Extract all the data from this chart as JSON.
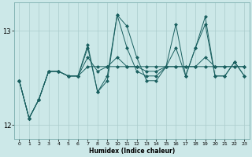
{
  "xlabel": "Humidex (Indice chaleur)",
  "bg_color": "#cce8e8",
  "grid_color": "#aacccc",
  "line_color": "#1a6060",
  "xlim": [
    -0.5,
    23.5
  ],
  "ylim": [
    11.85,
    13.3
  ],
  "yticks": [
    12,
    13
  ],
  "xticks": [
    0,
    1,
    2,
    3,
    4,
    5,
    6,
    7,
    8,
    9,
    10,
    11,
    12,
    13,
    14,
    15,
    16,
    17,
    18,
    19,
    20,
    21,
    22,
    23
  ],
  "lineA": [
    12.47,
    12.07,
    12.27,
    12.57,
    12.57,
    12.52,
    12.52,
    12.62,
    12.62,
    12.62,
    12.62,
    12.62,
    12.62,
    12.62,
    12.62,
    12.62,
    12.62,
    12.62,
    12.62,
    12.62,
    12.62,
    12.62,
    12.62,
    12.62
  ],
  "lineB": [
    12.47,
    12.07,
    12.27,
    12.57,
    12.57,
    12.52,
    12.52,
    12.72,
    12.57,
    12.62,
    12.72,
    12.62,
    12.62,
    12.57,
    12.57,
    12.62,
    12.62,
    12.62,
    12.62,
    12.72,
    12.62,
    12.62,
    12.62,
    12.62
  ],
  "lineC": [
    12.47,
    12.07,
    12.27,
    12.57,
    12.57,
    12.52,
    12.52,
    12.82,
    12.35,
    12.52,
    13.17,
    12.82,
    12.57,
    12.52,
    12.52,
    12.62,
    12.82,
    12.52,
    12.82,
    13.07,
    12.52,
    12.52,
    12.67,
    12.52
  ],
  "lineD": [
    12.47,
    12.07,
    12.27,
    12.57,
    12.57,
    12.52,
    12.52,
    12.85,
    12.35,
    12.47,
    13.17,
    13.05,
    12.72,
    12.47,
    12.47,
    12.62,
    13.07,
    12.52,
    12.82,
    13.15,
    12.52,
    12.52,
    12.67,
    12.52
  ]
}
